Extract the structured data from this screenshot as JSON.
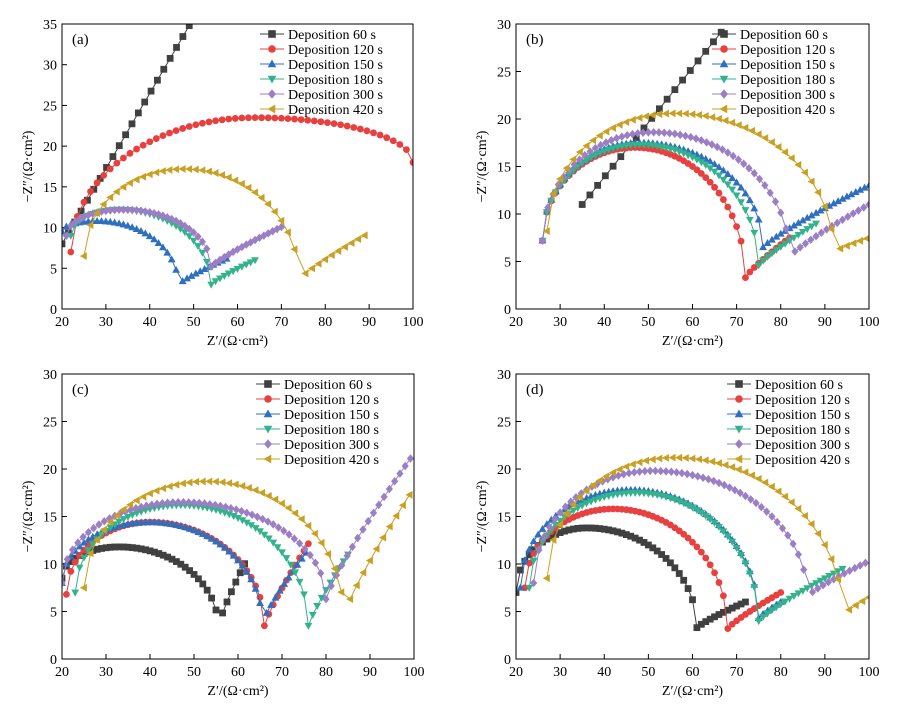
{
  "figure": {
    "legend_prefix": "Deposition",
    "series_names": [
      "Deposition 60 s",
      "Deposition 120 s",
      "Deposition 150 s",
      "Deposition 180 s",
      "Deposition 300 s",
      "Deposition 420 s"
    ],
    "colors": [
      "#404040",
      "#e8403f",
      "#2f6fbf",
      "#32b38c",
      "#9b7fc4",
      "#c9a021"
    ],
    "markers": [
      "square",
      "circle",
      "triangle-up",
      "triangle-down",
      "diamond",
      "triangle-left"
    ]
  },
  "chart_data": [
    {
      "type": "scatter",
      "panel_label": "(a)",
      "xlabel": "Z′/(Ω·cm²)",
      "ylabel": "−Z″/(Ω·cm²)",
      "xlim": [
        20,
        100
      ],
      "ylim": [
        0,
        35
      ],
      "xticks": [
        20,
        30,
        40,
        50,
        60,
        70,
        80,
        90,
        100
      ],
      "yticks": [
        0,
        5,
        10,
        15,
        20,
        25,
        30,
        35
      ],
      "series": [
        {
          "name": "Deposition 60 s",
          "kind": "line",
          "x0": 20,
          "y0": 8,
          "x1": 49,
          "y1": 34.8,
          "step": 1.45
        },
        {
          "name": "Deposition 120 s",
          "kind": "arc",
          "xs": 22,
          "xc": 64,
          "xe": 100,
          "ys": 7,
          "ypk": 23.5,
          "ye": 18,
          "step": 1.5
        },
        {
          "name": "Deposition 150 s",
          "kind": "arc",
          "xs": 20,
          "xc": 28,
          "xm": 46.5,
          "ys": 9.5,
          "ypk": 10.8,
          "ym": 3,
          "xe": 58,
          "ye": 6.3,
          "step": 1
        },
        {
          "name": "Deposition 180 s",
          "kind": "arc",
          "xs": 22,
          "xc": 33,
          "xm": 54,
          "ys": 9,
          "ypk": 12.2,
          "ym": 3,
          "xe": 64,
          "ye": 6,
          "step": 1
        },
        {
          "name": "Deposition 300 s",
          "kind": "arc",
          "xs": 21,
          "xc": 34,
          "xm": 54,
          "ys": 9,
          "ypk": 12.2,
          "ym": 5.2,
          "xe": 70.5,
          "ye": 10.2,
          "step": 1
        },
        {
          "name": "Deposition 420 s",
          "kind": "arc",
          "xs": 25,
          "xc": 48,
          "xm": 74,
          "ys": 6.5,
          "ypk": 17.2,
          "ym": 3.6,
          "xe": 89.5,
          "ye": 9.2,
          "step": 1.5
        }
      ]
    },
    {
      "type": "scatter",
      "panel_label": "(b)",
      "xlabel": "Z′/(Ω·cm²)",
      "ylabel": "−Z″/(Ω·cm²)",
      "xlim": [
        20,
        100
      ],
      "ylim": [
        0,
        30
      ],
      "xticks": [
        20,
        30,
        40,
        50,
        60,
        70,
        80,
        90,
        100
      ],
      "yticks": [
        0,
        5,
        10,
        15,
        20,
        25,
        30
      ],
      "series": [
        {
          "name": "Deposition 60 s",
          "kind": "line",
          "x0": 35,
          "y0": 11,
          "x1": 68,
          "y1": 30,
          "step": 1.75
        },
        {
          "name": "Deposition 120 s",
          "kind": "arc",
          "xs": 26,
          "xc": 47,
          "xm": 72,
          "ys": 7.2,
          "ypk": 17,
          "ym": 3.3,
          "xe": 82,
          "ye": 7.5,
          "step": 1
        },
        {
          "name": "Deposition 150 s",
          "kind": "arc",
          "xs": 26,
          "xc": 48,
          "xm": 76,
          "ys": 7.2,
          "ypk": 17.5,
          "ym": 6.5,
          "xe": 100,
          "ye": 13,
          "step": 1
        },
        {
          "name": "Deposition 180 s",
          "kind": "arc",
          "xs": 26,
          "xc": 48,
          "xm": 75,
          "ys": 7.2,
          "ypk": 17.3,
          "ym": 4.6,
          "xe": 88,
          "ye": 9,
          "step": 1
        },
        {
          "name": "Deposition 300 s",
          "kind": "arc",
          "xs": 26,
          "xc": 51,
          "xm": 82,
          "ys": 7.2,
          "ypk": 18.6,
          "ym": 5.5,
          "xe": 100,
          "ye": 11,
          "step": 1.2
        },
        {
          "name": "Deposition 420 s",
          "kind": "arc",
          "xs": 27,
          "xc": 56,
          "xm": 92,
          "ys": 8.2,
          "ypk": 20.6,
          "ym": 6,
          "xe": 100,
          "ye": 7.5,
          "step": 1.5
        }
      ]
    },
    {
      "type": "scatter",
      "panel_label": "(c)",
      "xlabel": "Z′/(Ω·cm²)",
      "ylabel": "−Z″/(Ω·cm²)",
      "xlim": [
        20,
        100
      ],
      "ylim": [
        0,
        30
      ],
      "xticks": [
        20,
        30,
        40,
        50,
        60,
        70,
        80,
        90,
        100
      ],
      "yticks": [
        0,
        5,
        10,
        15,
        20,
        25,
        30
      ],
      "series": [
        {
          "name": "Deposition 60 s",
          "kind": "arc",
          "xs": 20,
          "xc": 33,
          "xm": 55.5,
          "ys": 8.5,
          "ypk": 11.8,
          "ym": 3.4,
          "xe": 62,
          "ye": 10.5,
          "step": 1
        },
        {
          "name": "Deposition 120 s",
          "kind": "arc",
          "xs": 21,
          "xc": 40,
          "xm": 66,
          "ys": 6.8,
          "ypk": 14.4,
          "ym": 3.5,
          "xe": 76.5,
          "ye": 12.5,
          "step": 1
        },
        {
          "name": "Deposition 150 s",
          "kind": "arc",
          "xs": 20,
          "xc": 40,
          "xm": 65.5,
          "ys": 8,
          "ypk": 14.4,
          "ym": 3.8,
          "xe": 76,
          "ye": 11.5,
          "step": 1
        },
        {
          "name": "Deposition 180 s",
          "kind": "arc",
          "xs": 23,
          "xc": 47,
          "xm": 76,
          "ys": 7,
          "ypk": 16.2,
          "ym": 3.5,
          "xe": 85,
          "ye": 11,
          "step": 1
        },
        {
          "name": "Deposition 300 s",
          "kind": "arc",
          "xs": 20,
          "xc": 47,
          "xm": 80,
          "ys": 8,
          "ypk": 16.5,
          "ym": 6.3,
          "xe": 99.5,
          "ye": 21.3,
          "step": 1.2
        },
        {
          "name": "Deposition 420 s",
          "kind": "arc",
          "xs": 25,
          "xc": 53,
          "xm": 84,
          "ys": 7.5,
          "ypk": 18.7,
          "ym": 4.5,
          "xe": 100,
          "ye": 18,
          "step": 1.5
        }
      ]
    },
    {
      "type": "scatter",
      "panel_label": "(d)",
      "xlabel": "Z′/(Ω·cm²)",
      "ylabel": "−Z″/(Ω·cm²)",
      "xlim": [
        20,
        100
      ],
      "ylim": [
        0,
        30
      ],
      "xticks": [
        20,
        30,
        40,
        50,
        60,
        70,
        80,
        90,
        100
      ],
      "yticks": [
        0,
        5,
        10,
        15,
        20,
        25,
        30
      ],
      "series": [
        {
          "name": "Deposition 60 s",
          "kind": "arc",
          "xs": 20,
          "xc": 36,
          "xm": 61,
          "ys": 7,
          "ypk": 13.8,
          "ym": 3.3,
          "xe": 72,
          "ye": 6,
          "step": 1
        },
        {
          "name": "Deposition 120 s",
          "kind": "arc",
          "xs": 22,
          "xc": 42,
          "xm": 68,
          "ys": 7.5,
          "ypk": 15.8,
          "ym": 3.2,
          "xe": 80,
          "ye": 7,
          "step": 1
        },
        {
          "name": "Deposition 150 s",
          "kind": "arc",
          "xs": 21,
          "xc": 46,
          "xm": 75,
          "ys": 7.5,
          "ypk": 17.8,
          "ym": 4.3,
          "xe": 80,
          "ye": 6,
          "step": 1
        },
        {
          "name": "Deposition 180 s",
          "kind": "arc",
          "xs": 23,
          "xc": 47,
          "xm": 75,
          "ys": 7.5,
          "ypk": 17.5,
          "ym": 4,
          "xe": 94,
          "ye": 9.5,
          "step": 1
        },
        {
          "name": "Deposition 300 s",
          "kind": "arc",
          "xs": 24,
          "xc": 51,
          "xm": 86,
          "ys": 8,
          "ypk": 19.8,
          "ym": 6.6,
          "xe": 100,
          "ye": 10.3,
          "step": 1.2
        },
        {
          "name": "Deposition 420 s",
          "kind": "arc",
          "xs": 27,
          "xc": 56,
          "xm": 94,
          "ys": 8.5,
          "ypk": 21.2,
          "ym": 4.6,
          "xe": 100,
          "ye": 6.5,
          "step": 1.5
        }
      ]
    }
  ]
}
